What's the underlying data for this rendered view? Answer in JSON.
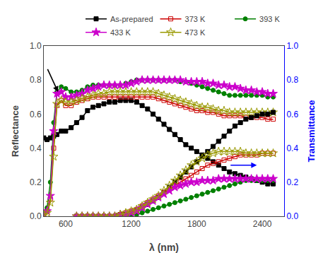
{
  "chart_data": {
    "type": "line",
    "title": "",
    "x_label": "λ (nm)",
    "y_label": "Reflectance",
    "y2_label": "Transmittance",
    "xlim": [
      400,
      2600
    ],
    "ylim": [
      0.0,
      1.0
    ],
    "y2lim": [
      0.0,
      1.0
    ],
    "xticks": [
      600,
      1200,
      1800,
      2400
    ],
    "yticks": [
      {
        "value": 0.0,
        "label": "0.0"
      },
      0.2,
      0.4,
      0.6,
      0.8,
      {
        "value": 1.0,
        "label": "1.0"
      }
    ],
    "y2ticks": [
      {
        "value": 0.0,
        "label": "0.0"
      },
      0.2,
      0.4,
      0.6,
      0.8,
      {
        "value": 1.0,
        "label": "1.0"
      }
    ],
    "grid": false,
    "legend": "upper right",
    "series": [
      {
        "name": "As-prepared",
        "color": "#000000",
        "marker": "square",
        "line_style": "solid",
        "x": [
          400,
          430,
          460,
          490,
          520,
          560,
          600,
          650,
          700,
          750,
          800,
          850,
          900,
          950,
          1000,
          1050,
          1100,
          1150,
          1200,
          1250,
          1300,
          1350,
          1400,
          1450,
          1500,
          1550,
          1600,
          1650,
          1700,
          1750,
          1800,
          1850,
          1900,
          1950,
          2000,
          2050,
          2100,
          2150,
          2200,
          2250,
          2300,
          2350,
          2400,
          2450,
          2500
        ],
        "values": [
          0.46,
          0.45,
          0.46,
          0.47,
          0.48,
          0.5,
          0.5,
          0.52,
          0.55,
          0.58,
          0.62,
          0.64,
          0.65,
          0.66,
          0.67,
          0.67,
          0.68,
          0.68,
          0.68,
          0.67,
          0.65,
          0.63,
          0.6,
          0.57,
          0.54,
          0.51,
          0.48,
          0.45,
          0.42,
          0.4,
          0.38,
          0.36,
          0.34,
          0.32,
          0.3,
          0.28,
          0.26,
          0.25,
          0.24,
          0.23,
          0.22,
          0.21,
          0.2,
          0.19,
          0.19
        ]
      },
      {
        "name": "373 K",
        "color": "#cc0000",
        "marker": "square-open",
        "line_style": "solid",
        "x": [
          400,
          430,
          460,
          490,
          520,
          560,
          600,
          650,
          700,
          750,
          800,
          850,
          900,
          950,
          1000,
          1050,
          1100,
          1150,
          1200,
          1250,
          1300,
          1350,
          1400,
          1450,
          1500,
          1550,
          1600,
          1650,
          1700,
          1750,
          1800,
          1850,
          1900,
          1950,
          2000,
          2050,
          2100,
          2150,
          2200,
          2250,
          2300,
          2350,
          2400,
          2450,
          2500
        ],
        "values": [
          0.01,
          0.03,
          0.1,
          0.4,
          0.65,
          0.68,
          0.65,
          0.65,
          0.67,
          0.68,
          0.69,
          0.7,
          0.7,
          0.7,
          0.7,
          0.7,
          0.7,
          0.7,
          0.7,
          0.7,
          0.7,
          0.7,
          0.7,
          0.69,
          0.68,
          0.67,
          0.66,
          0.65,
          0.64,
          0.63,
          0.62,
          0.62,
          0.61,
          0.61,
          0.6,
          0.59,
          0.59,
          0.59,
          0.59,
          0.58,
          0.58,
          0.58,
          0.58,
          0.57,
          0.57
        ]
      },
      {
        "name": "393 K",
        "color": "#008000",
        "marker": "circle",
        "line_style": "solid",
        "x": [
          400,
          430,
          460,
          490,
          520,
          560,
          600,
          650,
          700,
          750,
          800,
          850,
          900,
          950,
          1000,
          1050,
          1100,
          1150,
          1200,
          1250,
          1300,
          1350,
          1400,
          1450,
          1500,
          1550,
          1600,
          1650,
          1700,
          1750,
          1800,
          1850,
          1900,
          1950,
          2000,
          2050,
          2100,
          2150,
          2200,
          2250,
          2300,
          2350,
          2400,
          2450,
          2500
        ],
        "values": [
          0.02,
          0.05,
          0.2,
          0.55,
          0.73,
          0.76,
          0.75,
          0.73,
          0.73,
          0.74,
          0.76,
          0.77,
          0.77,
          0.77,
          0.77,
          0.77,
          0.77,
          0.78,
          0.79,
          0.8,
          0.8,
          0.8,
          0.8,
          0.8,
          0.8,
          0.8,
          0.8,
          0.79,
          0.79,
          0.78,
          0.77,
          0.76,
          0.75,
          0.74,
          0.73,
          0.72,
          0.71,
          0.71,
          0.71,
          0.71,
          0.71,
          0.71,
          0.71,
          0.7,
          0.7
        ]
      },
      {
        "name": "433 K",
        "color": "#cc00cc",
        "marker": "star",
        "line_style": "solid",
        "x": [
          400,
          430,
          460,
          490,
          520,
          560,
          600,
          650,
          700,
          750,
          800,
          850,
          900,
          950,
          1000,
          1050,
          1100,
          1150,
          1200,
          1250,
          1300,
          1350,
          1400,
          1450,
          1500,
          1550,
          1600,
          1650,
          1700,
          1750,
          1800,
          1850,
          1900,
          1950,
          2000,
          2050,
          2100,
          2150,
          2200,
          2250,
          2300,
          2350,
          2400,
          2450,
          2500
        ],
        "values": [
          0.01,
          0.03,
          0.12,
          0.5,
          0.72,
          0.73,
          0.7,
          0.7,
          0.71,
          0.72,
          0.74,
          0.75,
          0.76,
          0.77,
          0.77,
          0.77,
          0.77,
          0.77,
          0.78,
          0.79,
          0.8,
          0.8,
          0.8,
          0.8,
          0.8,
          0.8,
          0.8,
          0.8,
          0.79,
          0.79,
          0.79,
          0.79,
          0.78,
          0.78,
          0.77,
          0.77,
          0.76,
          0.76,
          0.75,
          0.74,
          0.74,
          0.73,
          0.73,
          0.72,
          0.72
        ]
      },
      {
        "name": "473 K",
        "color": "#999900",
        "marker": "star-open",
        "line_style": "solid",
        "x": [
          400,
          430,
          460,
          490,
          520,
          560,
          600,
          650,
          700,
          750,
          800,
          850,
          900,
          950,
          1000,
          1050,
          1100,
          1150,
          1200,
          1250,
          1300,
          1350,
          1400,
          1450,
          1500,
          1550,
          1600,
          1650,
          1700,
          1750,
          1800,
          1850,
          1900,
          1950,
          2000,
          2050,
          2100,
          2150,
          2200,
          2250,
          2300,
          2350,
          2400,
          2450,
          2500
        ],
        "values": [
          0.01,
          0.02,
          0.08,
          0.35,
          0.66,
          0.68,
          0.67,
          0.67,
          0.68,
          0.69,
          0.7,
          0.71,
          0.72,
          0.72,
          0.73,
          0.73,
          0.73,
          0.73,
          0.73,
          0.73,
          0.73,
          0.73,
          0.73,
          0.72,
          0.71,
          0.7,
          0.69,
          0.68,
          0.67,
          0.66,
          0.65,
          0.64,
          0.64,
          0.63,
          0.62,
          0.62,
          0.61,
          0.61,
          0.61,
          0.61,
          0.61,
          0.61,
          0.61,
          0.61,
          0.61
        ]
      },
      {
        "axis": "y2",
        "color": "#000000",
        "marker": "square",
        "line_style": "solid",
        "x": [
          700,
          750,
          800,
          850,
          900,
          950,
          1000,
          1050,
          1100,
          1150,
          1200,
          1250,
          1300,
          1350,
          1400,
          1450,
          1500,
          1550,
          1600,
          1650,
          1700,
          1750,
          1800,
          1850,
          1900,
          1950,
          2000,
          2050,
          2100,
          2150,
          2200,
          2250,
          2300,
          2350,
          2400,
          2450,
          2500
        ],
        "values": [
          0.0,
          0.0,
          0.0,
          0.0,
          0.0,
          0.0,
          0.0,
          0.0,
          0.01,
          0.01,
          0.02,
          0.03,
          0.05,
          0.07,
          0.09,
          0.11,
          0.14,
          0.17,
          0.2,
          0.23,
          0.26,
          0.29,
          0.32,
          0.35,
          0.38,
          0.41,
          0.44,
          0.47,
          0.5,
          0.53,
          0.55,
          0.57,
          0.58,
          0.59,
          0.6,
          0.6,
          0.61
        ]
      },
      {
        "axis": "y2",
        "color": "#cc0000",
        "marker": "square-open",
        "line_style": "solid",
        "x": [
          700,
          750,
          800,
          850,
          900,
          950,
          1000,
          1050,
          1100,
          1150,
          1200,
          1250,
          1300,
          1350,
          1400,
          1450,
          1500,
          1550,
          1600,
          1650,
          1700,
          1750,
          1800,
          1850,
          1900,
          1950,
          2000,
          2050,
          2100,
          2150,
          2200,
          2250,
          2300,
          2350,
          2400,
          2450,
          2500
        ],
        "values": [
          0.0,
          0.0,
          0.0,
          0.0,
          0.0,
          0.0,
          0.0,
          0.0,
          0.01,
          0.02,
          0.03,
          0.04,
          0.06,
          0.08,
          0.1,
          0.12,
          0.14,
          0.16,
          0.18,
          0.2,
          0.22,
          0.24,
          0.26,
          0.28,
          0.3,
          0.31,
          0.32,
          0.33,
          0.34,
          0.35,
          0.36,
          0.36,
          0.36,
          0.36,
          0.37,
          0.37,
          0.37
        ]
      },
      {
        "axis": "y2",
        "color": "#008000",
        "marker": "circle",
        "line_style": "solid",
        "x": [
          700,
          750,
          800,
          850,
          900,
          950,
          1000,
          1050,
          1100,
          1150,
          1200,
          1250,
          1300,
          1350,
          1400,
          1450,
          1500,
          1550,
          1600,
          1650,
          1700,
          1750,
          1800,
          1850,
          1900,
          1950,
          2000,
          2050,
          2100,
          2150,
          2200,
          2250,
          2300,
          2350,
          2400,
          2450,
          2500
        ],
        "values": [
          0.0,
          0.0,
          0.0,
          0.0,
          0.0,
          0.0,
          0.0,
          0.0,
          0.0,
          0.0,
          0.01,
          0.01,
          0.02,
          0.03,
          0.04,
          0.05,
          0.06,
          0.07,
          0.08,
          0.09,
          0.1,
          0.11,
          0.12,
          0.13,
          0.14,
          0.15,
          0.16,
          0.17,
          0.18,
          0.19,
          0.2,
          0.21,
          0.21,
          0.21,
          0.21,
          0.21,
          0.21
        ]
      },
      {
        "axis": "y2",
        "color": "#cc00cc",
        "marker": "star",
        "line_style": "solid",
        "x": [
          700,
          750,
          800,
          850,
          900,
          950,
          1000,
          1050,
          1100,
          1150,
          1200,
          1250,
          1300,
          1350,
          1400,
          1450,
          1500,
          1550,
          1600,
          1650,
          1700,
          1750,
          1800,
          1850,
          1900,
          1950,
          2000,
          2050,
          2100,
          2150,
          2200,
          2250,
          2300,
          2350,
          2400,
          2450,
          2500
        ],
        "values": [
          0.0,
          0.0,
          0.0,
          0.0,
          0.0,
          0.0,
          0.0,
          0.0,
          0.01,
          0.01,
          0.02,
          0.03,
          0.05,
          0.07,
          0.09,
          0.11,
          0.13,
          0.15,
          0.17,
          0.18,
          0.19,
          0.2,
          0.2,
          0.21,
          0.21,
          0.21,
          0.22,
          0.22,
          0.22,
          0.22,
          0.22,
          0.22,
          0.22,
          0.22,
          0.22,
          0.22,
          0.22
        ]
      },
      {
        "axis": "y2",
        "color": "#999900",
        "marker": "star-open",
        "line_style": "solid",
        "x": [
          700,
          750,
          800,
          850,
          900,
          950,
          1000,
          1050,
          1100,
          1150,
          1200,
          1250,
          1300,
          1350,
          1400,
          1450,
          1500,
          1550,
          1600,
          1650,
          1700,
          1750,
          1800,
          1850,
          1900,
          1950,
          2000,
          2050,
          2100,
          2150,
          2200,
          2250,
          2300,
          2350,
          2400,
          2450,
          2500
        ],
        "values": [
          0.0,
          0.0,
          0.0,
          0.0,
          0.0,
          0.0,
          0.0,
          0.0,
          0.01,
          0.02,
          0.03,
          0.04,
          0.06,
          0.08,
          0.1,
          0.12,
          0.15,
          0.18,
          0.21,
          0.24,
          0.27,
          0.3,
          0.32,
          0.34,
          0.36,
          0.37,
          0.38,
          0.38,
          0.38,
          0.38,
          0.38,
          0.37,
          0.37,
          0.37,
          0.37,
          0.37,
          0.37
        ]
      }
    ],
    "arrows": [
      {
        "from": [
          430,
          0.87
        ],
        "to": [
          530,
          0.73
        ],
        "color": "#000000"
      },
      {
        "from": [
          2100,
          0.3
        ],
        "to": [
          2350,
          0.3
        ],
        "axis": "y2",
        "color": "blue"
      }
    ]
  }
}
